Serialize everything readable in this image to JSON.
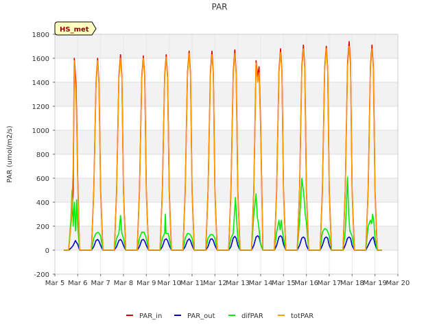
{
  "chart_data": {
    "type": "line",
    "title": "PAR",
    "xlabel": "",
    "ylabel": "PAR (umol/m2/s)",
    "ylim": [
      -200,
      1800
    ],
    "xlim": [
      5,
      20
    ],
    "yticks": [
      -200,
      0,
      200,
      400,
      600,
      800,
      1000,
      1200,
      1400,
      1600,
      1800
    ],
    "xticks": [
      5,
      6,
      7,
      8,
      9,
      10,
      11,
      12,
      13,
      14,
      15,
      16,
      17,
      18,
      19,
      20
    ],
    "xtick_labels": [
      "Mar 5",
      "Mar 6",
      "Mar 7",
      "Mar 8",
      "Mar 9",
      "Mar 10",
      "Mar 11",
      "Mar 12",
      "Mar 13",
      "Mar 14",
      "Mar 15",
      "Mar 16",
      "Mar 17",
      "Mar 18",
      "Mar 19",
      "Mar 20"
    ],
    "grid": true,
    "badge": "HS_met",
    "legend_position": "bottom",
    "series": [
      {
        "name": "PAR_in",
        "color": "#dd0000",
        "x": [
          5.4,
          5.6,
          5.72,
          5.8,
          5.85,
          5.92,
          5.96,
          6.0,
          6.08,
          6.15,
          6.3,
          6.6,
          6.7,
          6.8,
          6.87,
          6.93,
          7.0,
          7.1,
          7.3,
          7.6,
          7.7,
          7.8,
          7.87,
          7.93,
          8.0,
          8.1,
          8.3,
          8.6,
          8.7,
          8.8,
          8.87,
          8.93,
          9.0,
          9.1,
          9.3,
          9.6,
          9.7,
          9.8,
          9.87,
          9.93,
          10.0,
          10.1,
          10.3,
          10.6,
          10.7,
          10.8,
          10.87,
          10.93,
          11.0,
          11.1,
          11.3,
          11.6,
          11.7,
          11.8,
          11.87,
          11.93,
          12.0,
          12.1,
          12.3,
          12.6,
          12.7,
          12.8,
          12.87,
          12.93,
          13.0,
          13.1,
          13.3,
          13.6,
          13.7,
          13.8,
          13.87,
          13.93,
          14.0,
          14.1,
          14.3,
          14.6,
          14.7,
          14.8,
          14.87,
          14.93,
          15.0,
          15.1,
          15.3,
          15.6,
          15.7,
          15.8,
          15.87,
          15.93,
          16.0,
          16.1,
          16.3,
          16.6,
          16.7,
          16.8,
          16.87,
          16.93,
          17.0,
          17.1,
          17.3,
          17.6,
          17.7,
          17.8,
          17.87,
          17.93,
          18.0,
          18.1,
          18.3,
          18.6,
          18.7,
          18.8,
          18.87,
          18.93,
          19.0,
          19.1,
          19.3
        ],
        "y": [
          0,
          0,
          250,
          500,
          1600,
          1400,
          1050,
          600,
          0,
          0,
          0,
          0,
          500,
          1400,
          1600,
          1400,
          500,
          0,
          0,
          0,
          500,
          1450,
          1630,
          1450,
          500,
          0,
          0,
          0,
          500,
          1450,
          1620,
          1450,
          500,
          0,
          0,
          0,
          500,
          1450,
          1630,
          1450,
          500,
          0,
          0,
          0,
          500,
          1480,
          1660,
          1480,
          500,
          0,
          0,
          0,
          500,
          1480,
          1660,
          1480,
          500,
          0,
          0,
          0,
          500,
          1480,
          1670,
          1480,
          500,
          0,
          0,
          0,
          500,
          1580,
          1450,
          1530,
          1050,
          0,
          0,
          0,
          500,
          1500,
          1680,
          1500,
          500,
          0,
          0,
          0,
          500,
          1530,
          1710,
          1530,
          500,
          0,
          0,
          0,
          500,
          1520,
          1700,
          1520,
          500,
          0,
          0,
          0,
          500,
          1560,
          1740,
          1560,
          500,
          0,
          0,
          0,
          500,
          1530,
          1710,
          1530,
          500,
          0,
          0
        ]
      },
      {
        "name": "PAR_out",
        "color": "#0000cc",
        "x": [
          5.4,
          5.6,
          5.72,
          5.8,
          5.9,
          5.96,
          6.0,
          6.08,
          6.15,
          6.3,
          6.6,
          6.7,
          6.8,
          6.87,
          6.93,
          7.0,
          7.1,
          7.3,
          7.6,
          7.7,
          7.8,
          7.87,
          7.93,
          8.0,
          8.1,
          8.3,
          8.6,
          8.7,
          8.8,
          8.87,
          8.93,
          9.0,
          9.1,
          9.3,
          9.6,
          9.7,
          9.8,
          9.87,
          9.93,
          10.0,
          10.1,
          10.3,
          10.6,
          10.7,
          10.8,
          10.87,
          10.93,
          11.0,
          11.1,
          11.3,
          11.6,
          11.7,
          11.8,
          11.87,
          11.93,
          12.0,
          12.1,
          12.3,
          12.6,
          12.7,
          12.8,
          12.87,
          12.93,
          13.0,
          13.1,
          13.3,
          13.6,
          13.7,
          13.8,
          13.87,
          13.93,
          14.0,
          14.1,
          14.3,
          14.6,
          14.7,
          14.8,
          14.87,
          14.93,
          15.0,
          15.1,
          15.3,
          15.6,
          15.7,
          15.8,
          15.87,
          15.93,
          16.0,
          16.1,
          16.3,
          16.6,
          16.7,
          16.8,
          16.87,
          16.93,
          17.0,
          17.1,
          17.3,
          17.6,
          17.7,
          17.8,
          17.87,
          17.93,
          18.0,
          18.1,
          18.3,
          18.6,
          18.7,
          18.8,
          18.87,
          18.93,
          19.0,
          19.1,
          19.3
        ],
        "y": [
          0,
          0,
          20,
          40,
          80,
          60,
          50,
          0,
          0,
          0,
          0,
          30,
          80,
          90,
          75,
          40,
          0,
          0,
          0,
          30,
          80,
          90,
          75,
          40,
          0,
          0,
          0,
          30,
          85,
          90,
          75,
          40,
          0,
          0,
          0,
          30,
          85,
          95,
          80,
          40,
          0,
          0,
          0,
          30,
          80,
          95,
          80,
          40,
          0,
          0,
          0,
          30,
          90,
          95,
          80,
          40,
          0,
          0,
          0,
          30,
          100,
          115,
          100,
          40,
          0,
          0,
          0,
          40,
          110,
          120,
          110,
          50,
          0,
          0,
          0,
          40,
          110,
          120,
          110,
          50,
          0,
          0,
          0,
          40,
          100,
          110,
          100,
          40,
          0,
          0,
          0,
          40,
          100,
          110,
          100,
          40,
          0,
          0,
          0,
          40,
          100,
          110,
          100,
          40,
          0,
          0,
          0,
          40,
          80,
          100,
          110,
          50,
          0,
          0
        ]
      },
      {
        "name": "difPAR",
        "color": "#00ee00",
        "x": [
          5.4,
          5.6,
          5.7,
          5.75,
          5.8,
          5.85,
          5.9,
          5.95,
          6.0,
          6.08,
          6.15,
          6.3,
          6.6,
          6.7,
          6.8,
          6.9,
          7.0,
          7.1,
          7.3,
          7.6,
          7.7,
          7.8,
          7.87,
          7.93,
          8.0,
          8.1,
          8.3,
          8.6,
          8.7,
          8.8,
          8.9,
          9.0,
          9.1,
          9.3,
          9.6,
          9.7,
          9.8,
          9.83,
          9.86,
          9.95,
          10.0,
          10.1,
          10.3,
          10.6,
          10.7,
          10.8,
          10.9,
          11.0,
          11.1,
          11.3,
          11.6,
          11.7,
          11.8,
          11.9,
          12.0,
          12.1,
          12.3,
          12.6,
          12.7,
          12.8,
          12.9,
          12.95,
          13.0,
          13.1,
          13.3,
          13.6,
          13.7,
          13.8,
          13.85,
          13.9,
          13.95,
          14.0,
          14.1,
          14.3,
          14.6,
          14.7,
          14.8,
          14.85,
          14.9,
          14.95,
          15.0,
          15.1,
          15.3,
          15.6,
          15.7,
          15.8,
          15.9,
          15.95,
          16.0,
          16.1,
          16.3,
          16.6,
          16.7,
          16.8,
          16.9,
          17.0,
          17.1,
          17.3,
          17.6,
          17.7,
          17.8,
          17.85,
          17.9,
          18.0,
          18.1,
          18.3,
          18.6,
          18.7,
          18.8,
          18.85,
          18.9,
          18.95,
          19.0,
          19.1,
          19.3
        ],
        "y": [
          0,
          0,
          250,
          500,
          200,
          400,
          160,
          420,
          200,
          0,
          0,
          0,
          0,
          100,
          140,
          150,
          120,
          0,
          0,
          0,
          100,
          140,
          290,
          140,
          100,
          0,
          0,
          0,
          100,
          150,
          150,
          100,
          0,
          0,
          0,
          100,
          140,
          300,
          140,
          140,
          100,
          0,
          0,
          0,
          100,
          140,
          135,
          100,
          0,
          0,
          0,
          100,
          130,
          130,
          100,
          0,
          0,
          0,
          100,
          140,
          440,
          250,
          100,
          0,
          0,
          0,
          300,
          470,
          280,
          220,
          140,
          50,
          0,
          0,
          0,
          150,
          250,
          170,
          250,
          160,
          100,
          0,
          0,
          0,
          240,
          600,
          440,
          300,
          230,
          0,
          0,
          0,
          150,
          180,
          170,
          120,
          0,
          0,
          0,
          150,
          610,
          300,
          160,
          120,
          0,
          0,
          0,
          200,
          250,
          220,
          300,
          240,
          100,
          0,
          0
        ]
      },
      {
        "name": "totPAR",
        "color": "#ff9900",
        "x": [
          5.4,
          5.6,
          5.72,
          5.8,
          5.85,
          5.92,
          5.96,
          6.0,
          6.08,
          6.15,
          6.3,
          6.6,
          6.7,
          6.8,
          6.87,
          6.93,
          7.0,
          7.1,
          7.3,
          7.6,
          7.7,
          7.8,
          7.87,
          7.93,
          8.0,
          8.1,
          8.3,
          8.6,
          8.7,
          8.8,
          8.87,
          8.93,
          9.0,
          9.1,
          9.3,
          9.6,
          9.7,
          9.8,
          9.87,
          9.93,
          10.0,
          10.1,
          10.3,
          10.6,
          10.7,
          10.8,
          10.87,
          10.93,
          11.0,
          11.1,
          11.3,
          11.6,
          11.7,
          11.8,
          11.87,
          11.93,
          12.0,
          12.1,
          12.3,
          12.6,
          12.7,
          12.8,
          12.87,
          12.93,
          13.0,
          13.1,
          13.3,
          13.6,
          13.7,
          13.8,
          13.87,
          13.93,
          14.0,
          14.1,
          14.3,
          14.6,
          14.7,
          14.8,
          14.87,
          14.93,
          15.0,
          15.1,
          15.3,
          15.6,
          15.7,
          15.8,
          15.87,
          15.93,
          16.0,
          16.1,
          16.3,
          16.6,
          16.7,
          16.8,
          16.87,
          16.93,
          17.0,
          17.1,
          17.3,
          17.6,
          17.7,
          17.8,
          17.87,
          17.93,
          18.0,
          18.1,
          18.3,
          18.6,
          18.7,
          18.8,
          18.87,
          18.93,
          19.0,
          19.1,
          19.3
        ],
        "y": [
          0,
          0,
          240,
          700,
          1580,
          1300,
          1000,
          550,
          0,
          0,
          0,
          0,
          480,
          1380,
          1580,
          1380,
          480,
          0,
          0,
          0,
          480,
          1430,
          1600,
          1430,
          480,
          0,
          0,
          0,
          480,
          1430,
          1600,
          1430,
          480,
          0,
          0,
          0,
          480,
          1430,
          1610,
          1430,
          480,
          0,
          0,
          0,
          480,
          1460,
          1640,
          1460,
          480,
          0,
          0,
          0,
          480,
          1460,
          1630,
          1460,
          480,
          0,
          0,
          0,
          480,
          1460,
          1640,
          1460,
          480,
          0,
          0,
          0,
          480,
          1560,
          1400,
          1480,
          1000,
          0,
          0,
          0,
          480,
          1480,
          1650,
          1480,
          480,
          0,
          0,
          0,
          480,
          1510,
          1680,
          1510,
          480,
          0,
          0,
          0,
          480,
          1500,
          1680,
          1500,
          480,
          0,
          0,
          0,
          480,
          1530,
          1700,
          1530,
          480,
          0,
          0,
          0,
          480,
          1510,
          1680,
          1510,
          480,
          0,
          0
        ]
      }
    ]
  }
}
